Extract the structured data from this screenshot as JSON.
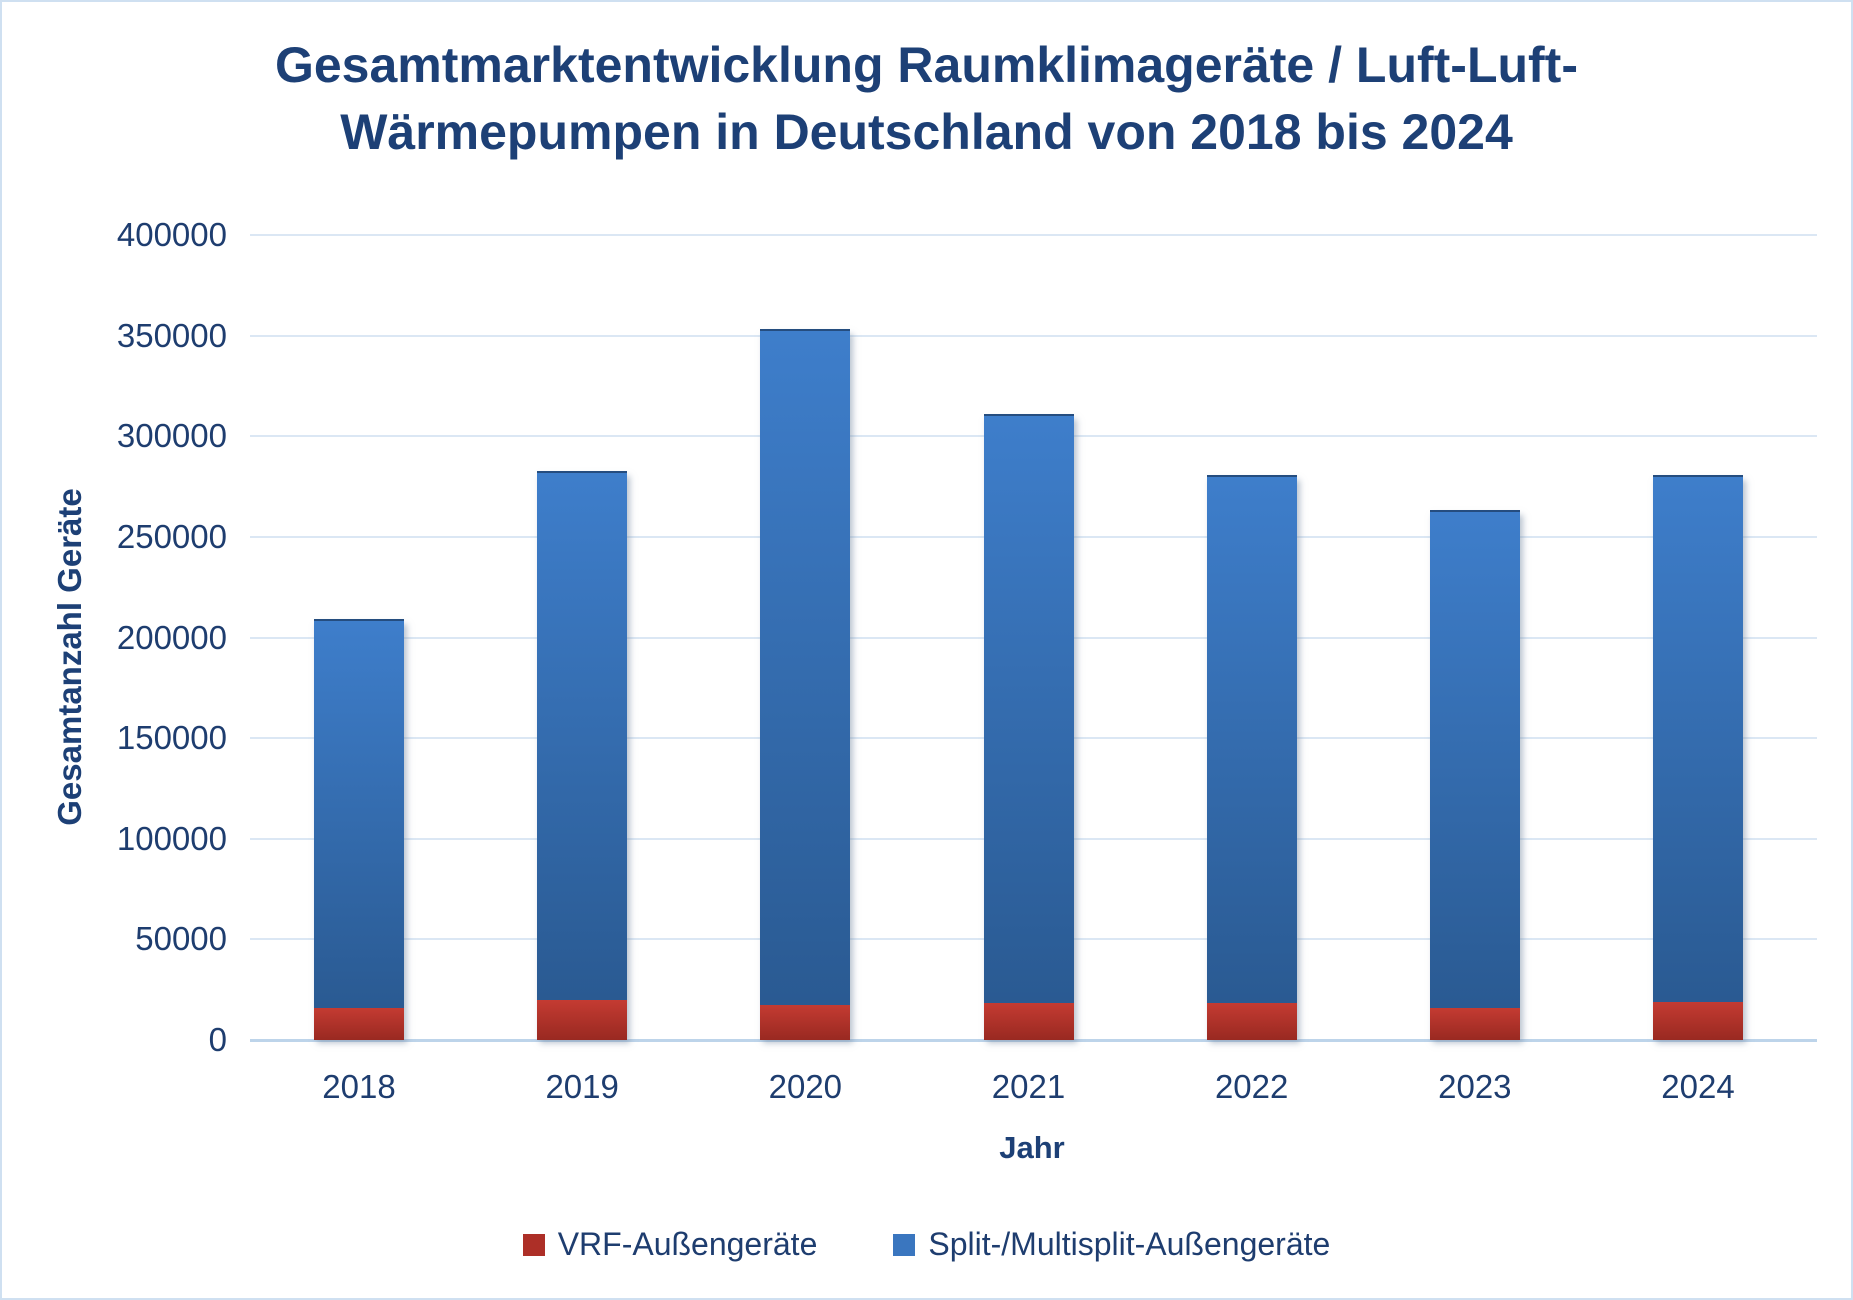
{
  "frame": {
    "border_color": "#cfe0f1",
    "background_color": "#ffffff",
    "text_color": "#1d4076"
  },
  "chart_data": {
    "type": "bar",
    "stacked": true,
    "title": "Gesamtmarktentwicklung Raumklimageräte / Luft-Luft-Wärmepumpen in Deutschland von 2018 bis 2024",
    "title_lines": [
      "Gesamtmarktentwicklung Raumklimageräte / Luft-Luft-",
      "Wärmepumpen in Deutschland von 2018 bis 2024"
    ],
    "xlabel": "Jahr",
    "ylabel": "Gesamtanzahl Geräte",
    "categories": [
      "2018",
      "2019",
      "2020",
      "2021",
      "2022",
      "2023",
      "2024"
    ],
    "series": [
      {
        "name": "VRF-Außengeräte",
        "color_top": "#c43b32",
        "color_bottom": "#992921",
        "legend_color": "#ad2f27",
        "values": [
          16000,
          20000,
          17500,
          18500,
          18500,
          16000,
          19000
        ]
      },
      {
        "name": "Split-/Multisplit-Außengeräte",
        "color_top": "#3e7ecb",
        "color_bottom": "#2a5a92",
        "legend_color": "#3a76bf",
        "values": [
          192000,
          261500,
          335000,
          291500,
          261500,
          246500,
          261000
        ]
      }
    ],
    "totals": [
      208000,
      281500,
      352500,
      310000,
      280000,
      262500,
      280000
    ],
    "ylim": [
      0,
      400000
    ],
    "ytick_step": 50000,
    "yticks": [
      "0",
      "50000",
      "100000",
      "150000",
      "200000",
      "250000",
      "300000",
      "350000",
      "400000"
    ],
    "grid": true,
    "gridline_color": "#dbe7f4",
    "axis_line_color": "#bdd4ea",
    "legend_position": "bottom"
  }
}
